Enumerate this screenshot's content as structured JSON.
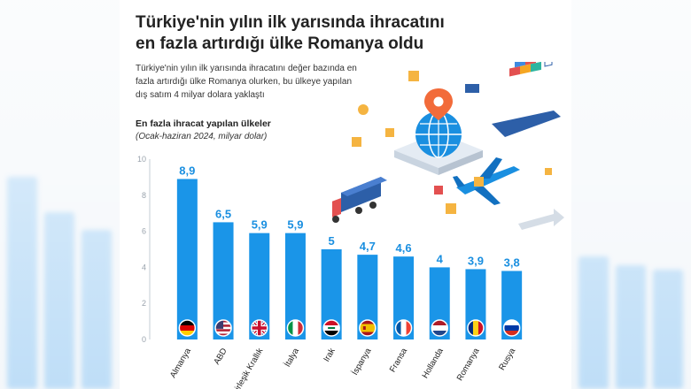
{
  "header": {
    "title_line1": "Türkiye'nin yılın ilk yarısında ihracatını",
    "title_line2": "en fazla artırdığı ülke Romanya oldu",
    "subtitle_line1": "Türkiye'nin yılın ilk yarısında ihracatını değer bazında en",
    "subtitle_line2": "fazla artırdığı ülke Romanya olurken, bu ülkeye yapılan",
    "subtitle_line3": "dış satım 4 milyar dolara yaklaştı"
  },
  "chart_data": {
    "type": "bar",
    "title": "En fazla ihracat yapılan ülkeler",
    "subtitle": "(Ocak-haziran 2024, milyar dolar)",
    "categories": [
      "Almanya",
      "ABD",
      "Birleşik Krallık",
      "İtalya",
      "Irak",
      "İspanya",
      "Fransa",
      "Hollanda",
      "Romanya",
      "Rusya"
    ],
    "values": [
      8.9,
      6.5,
      5.9,
      5.9,
      5,
      4.7,
      4.6,
      4,
      3.9,
      3.8
    ],
    "value_labels": [
      "8,9",
      "6,5",
      "5,9",
      "5,9",
      "5",
      "4,7",
      "4,6",
      "4",
      "3,9",
      "3,8"
    ],
    "y_ticks": [
      "0",
      "2",
      "4",
      "6",
      "8",
      "10"
    ],
    "ylim": [
      0,
      10
    ],
    "grid": false,
    "bar_color": "#1a95e8",
    "value_label_color": "#1a8fe0"
  },
  "icons": [
    "germany-flag-icon",
    "usa-flag-icon",
    "uk-flag-icon",
    "italy-flag-icon",
    "iraq-flag-icon",
    "spain-flag-icon",
    "france-flag-icon",
    "netherlands-flag-icon",
    "romania-flag-icon",
    "russia-flag-icon",
    "globe-icon",
    "location-pin-icon",
    "truck-icon",
    "airplane-icon",
    "cargo-ship-icon"
  ]
}
